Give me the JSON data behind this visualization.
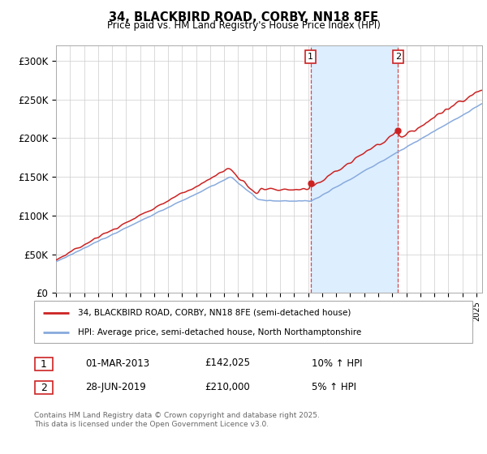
{
  "title": "34, BLACKBIRD ROAD, CORBY, NN18 8FE",
  "subtitle": "Price paid vs. HM Land Registry's House Price Index (HPI)",
  "background_color": "#ffffff",
  "grid_color": "#cccccc",
  "line_color_red": "#cc2222",
  "line_color_blue": "#88aadd",
  "shade_color": "#ddeeff",
  "sale1_date": "01-MAR-2013",
  "sale1_price": "£142,025",
  "sale1_hpi": "10% ↑ HPI",
  "sale2_date": "28-JUN-2019",
  "sale2_price": "£210,000",
  "sale2_hpi": "5% ↑ HPI",
  "legend_red": "34, BLACKBIRD ROAD, CORBY, NN18 8FE (semi-detached house)",
  "legend_blue": "HPI: Average price, semi-detached house, North Northamptonshire",
  "footer": "Contains HM Land Registry data © Crown copyright and database right 2025.\nThis data is licensed under the Open Government Licence v3.0.",
  "ymin": 0,
  "ymax": 320000,
  "yticks": [
    0,
    50000,
    100000,
    150000,
    200000,
    250000,
    300000
  ],
  "ytick_labels": [
    "£0",
    "£50K",
    "£100K",
    "£150K",
    "£200K",
    "£250K",
    "£300K"
  ],
  "sale1_year": 2013,
  "sale1_month": 3,
  "sale1_value": 142025,
  "sale2_year": 2019,
  "sale2_month": 6,
  "sale2_value": 210000
}
